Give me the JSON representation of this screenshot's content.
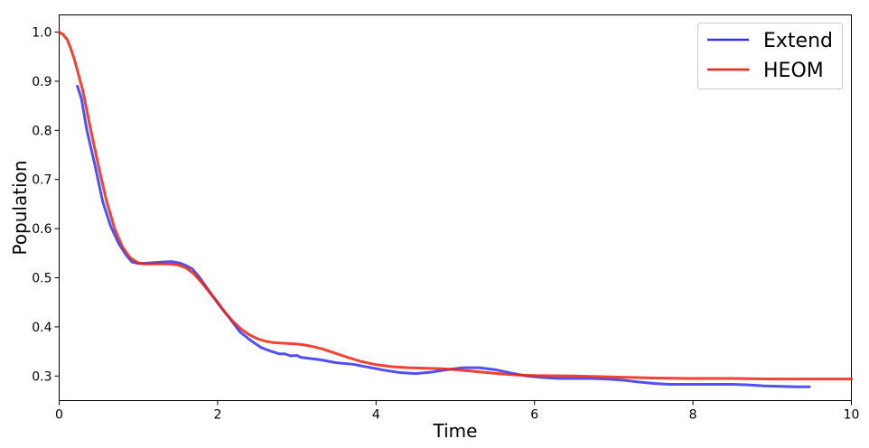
{
  "chart_data": {
    "type": "line",
    "xlabel": "Time",
    "ylabel": "Population",
    "xlim": [
      0,
      10
    ],
    "ylim": [
      0.25,
      1.035
    ],
    "xticks": [
      0,
      2,
      4,
      6,
      8,
      10
    ],
    "xtick_labels": [
      "0",
      "2",
      "4",
      "6",
      "8",
      "10"
    ],
    "yticks": [
      0.3,
      0.4,
      0.5,
      0.6,
      0.7,
      0.8,
      0.9,
      1.0
    ],
    "ytick_labels": [
      "0.3",
      "0.4",
      "0.5",
      "0.6",
      "0.7",
      "0.8",
      "0.9",
      "1.0"
    ],
    "grid": false,
    "legend_position": "top-right",
    "series": [
      {
        "name": "Extend",
        "color": "#3333ee",
        "x": [
          0.23,
          0.28,
          0.35,
          0.45,
          0.55,
          0.65,
          0.75,
          0.85,
          0.92,
          1.0,
          1.05,
          1.12,
          1.2,
          1.3,
          1.42,
          1.52,
          1.6,
          1.68,
          1.75,
          1.85,
          1.95,
          2.05,
          2.15,
          2.28,
          2.42,
          2.55,
          2.68,
          2.78,
          2.85,
          2.92,
          3.0,
          3.05,
          3.15,
          3.3,
          3.5,
          3.7,
          3.9,
          4.1,
          4.3,
          4.5,
          4.7,
          4.9,
          5.1,
          5.3,
          5.5,
          5.7,
          5.9,
          6.1,
          6.3,
          6.5,
          6.7,
          6.9,
          7.1,
          7.3,
          7.5,
          7.7,
          7.9,
          8.1,
          8.3,
          8.5,
          8.7,
          8.9,
          9.1,
          9.3,
          9.47
        ],
        "y": [
          0.89,
          0.865,
          0.8,
          0.73,
          0.655,
          0.605,
          0.57,
          0.545,
          0.532,
          0.529,
          0.529,
          0.53,
          0.531,
          0.532,
          0.533,
          0.53,
          0.525,
          0.518,
          0.505,
          0.483,
          0.46,
          0.438,
          0.418,
          0.39,
          0.372,
          0.358,
          0.35,
          0.345,
          0.345,
          0.341,
          0.342,
          0.338,
          0.336,
          0.333,
          0.327,
          0.324,
          0.318,
          0.312,
          0.307,
          0.305,
          0.308,
          0.313,
          0.317,
          0.317,
          0.313,
          0.306,
          0.3,
          0.297,
          0.295,
          0.295,
          0.295,
          0.294,
          0.292,
          0.288,
          0.285,
          0.283,
          0.283,
          0.283,
          0.283,
          0.283,
          0.282,
          0.28,
          0.279,
          0.278,
          0.278
        ]
      },
      {
        "name": "HEOM",
        "color": "#ee2211",
        "x": [
          0.0,
          0.05,
          0.1,
          0.15,
          0.2,
          0.25,
          0.3,
          0.4,
          0.5,
          0.6,
          0.7,
          0.8,
          0.9,
          1.0,
          1.1,
          1.2,
          1.3,
          1.4,
          1.5,
          1.6,
          1.7,
          1.8,
          1.9,
          2.0,
          2.1,
          2.2,
          2.3,
          2.4,
          2.5,
          2.6,
          2.7,
          2.8,
          2.9,
          3.0,
          3.1,
          3.2,
          3.3,
          3.4,
          3.6,
          3.8,
          4.0,
          4.2,
          4.4,
          4.6,
          4.8,
          5.0,
          5.2,
          5.4,
          5.6,
          5.8,
          6.0,
          6.5,
          7.0,
          7.5,
          8.0,
          8.5,
          9.0,
          9.5,
          10.0
        ],
        "y": [
          1.0,
          0.995,
          0.985,
          0.965,
          0.94,
          0.91,
          0.88,
          0.8,
          0.725,
          0.655,
          0.6,
          0.562,
          0.54,
          0.53,
          0.528,
          0.528,
          0.528,
          0.528,
          0.526,
          0.52,
          0.508,
          0.49,
          0.47,
          0.45,
          0.428,
          0.41,
          0.395,
          0.384,
          0.376,
          0.371,
          0.368,
          0.367,
          0.366,
          0.365,
          0.363,
          0.36,
          0.356,
          0.351,
          0.34,
          0.33,
          0.323,
          0.319,
          0.317,
          0.316,
          0.315,
          0.313,
          0.31,
          0.307,
          0.304,
          0.302,
          0.301,
          0.3,
          0.298,
          0.296,
          0.295,
          0.295,
          0.294,
          0.294,
          0.294
        ]
      }
    ]
  }
}
